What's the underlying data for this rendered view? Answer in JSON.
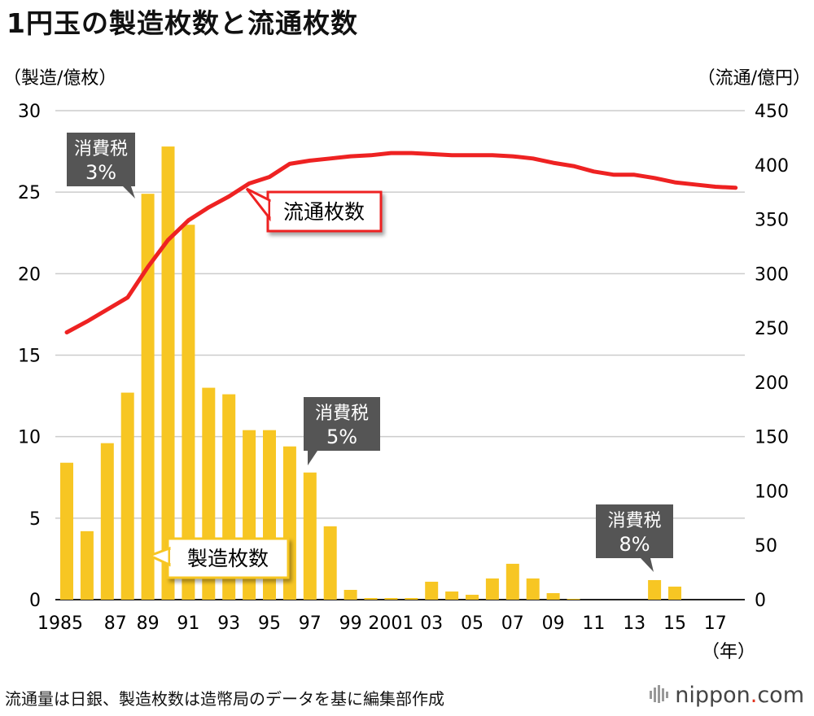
{
  "header": {
    "title": "1円玉の製造枚数と流通枚数"
  },
  "footer": {
    "source": "流通量は日銀、製造枚数は造幣局のデータを基に編集部作成",
    "brand_main": "nippon",
    "brand_dot": ".",
    "brand_tld": "com"
  },
  "colors": {
    "bar": "#f7c623",
    "line": "#ee2222",
    "callout_bg": "#555555",
    "grid": "#cccccc"
  },
  "chart_data": {
    "type": "bar+line",
    "title": "1円玉の製造枚数と流通枚数",
    "left_axis": {
      "label": "（製造/億枚）",
      "range": [
        0,
        30
      ],
      "ticks": [
        "0",
        "5",
        "10",
        "15",
        "20",
        "25",
        "30"
      ]
    },
    "right_axis": {
      "label": "（流通/億円）",
      "range": [
        0,
        450
      ],
      "ticks": [
        "0",
        "50",
        "100",
        "150",
        "200",
        "250",
        "300",
        "350",
        "400",
        "450"
      ]
    },
    "x_unit_label": "（年）",
    "x_tick_labels": [
      "1985",
      "87",
      "89",
      "91",
      "93",
      "95",
      "97",
      "99",
      "2001",
      "03",
      "05",
      "07",
      "09",
      "11",
      "13",
      "15",
      "17"
    ],
    "years": [
      1985,
      1986,
      1987,
      1988,
      1989,
      1990,
      1991,
      1992,
      1993,
      1994,
      1995,
      1996,
      1997,
      1998,
      1999,
      2000,
      2001,
      2002,
      2003,
      2004,
      2005,
      2006,
      2007,
      2008,
      2009,
      2010,
      2011,
      2012,
      2013,
      2014,
      2015,
      2016,
      2017,
      2018
    ],
    "series": [
      {
        "name": "製造枚数",
        "type": "bar",
        "axis": "left",
        "values": [
          8.4,
          4.2,
          9.6,
          12.7,
          24.9,
          27.8,
          23.0,
          13.0,
          12.6,
          10.4,
          10.4,
          9.4,
          7.8,
          4.5,
          0.6,
          0.1,
          0.1,
          0.1,
          1.1,
          0.5,
          0.3,
          1.3,
          2.2,
          1.3,
          0.4,
          0.05,
          0,
          0,
          0,
          1.2,
          0.8,
          0,
          0,
          0
        ]
      },
      {
        "name": "流通枚数",
        "type": "line",
        "axis": "right",
        "values": [
          246,
          256,
          267,
          278,
          306,
          331,
          349,
          361,
          371,
          383,
          389,
          401,
          404,
          406,
          408,
          409,
          411,
          411,
          410,
          409,
          409,
          409,
          408,
          406,
          402,
          399,
          394,
          391,
          391,
          388,
          384,
          382,
          380,
          379
        ]
      }
    ],
    "series_labels": {
      "bars": "製造枚数",
      "line": "流通枚数"
    },
    "annotations": [
      {
        "title": "消費税",
        "value": "3%",
        "year": 1989
      },
      {
        "title": "消費税",
        "value": "5%",
        "year": 1997
      },
      {
        "title": "消費税",
        "value": "8%",
        "year": 2014
      }
    ]
  }
}
